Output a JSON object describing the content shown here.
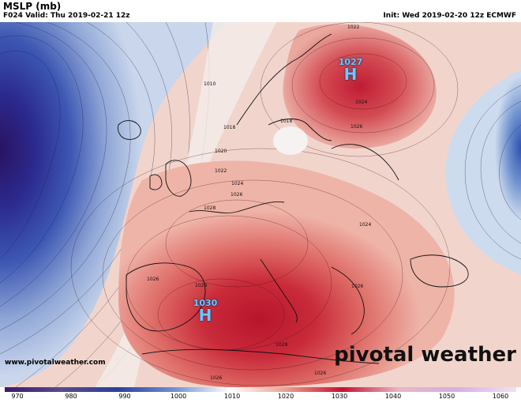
{
  "header": {
    "title": "MSLP (mb)",
    "valid": "F024 Valid: Thu 2019-02-21 12z",
    "init": "Init: Wed 2019-02-20 12z ECMWF"
  },
  "pressure_centers": [
    {
      "type": "H",
      "value": "1027"
    },
    {
      "type": "H",
      "value": "1030"
    }
  ],
  "isobar_labels": [
    "1022",
    "1010",
    "1018",
    "1018",
    "1020",
    "1022",
    "1024",
    "1026",
    "1028",
    "1024",
    "1026",
    "1024",
    "1026",
    "1028",
    "1028",
    "1026",
    "1026",
    "1026"
  ],
  "watermark": {
    "site": "www.pivotalweather.com",
    "brand": "pivotal weather"
  },
  "colorbar": {
    "ticks": [
      "970",
      "980",
      "990",
      "1000",
      "1010",
      "1020",
      "1030",
      "1040",
      "1050",
      "1060"
    ],
    "low_color": "#3b1a6e",
    "mid_color": "#ffffff",
    "high_color": "#c8102e"
  }
}
